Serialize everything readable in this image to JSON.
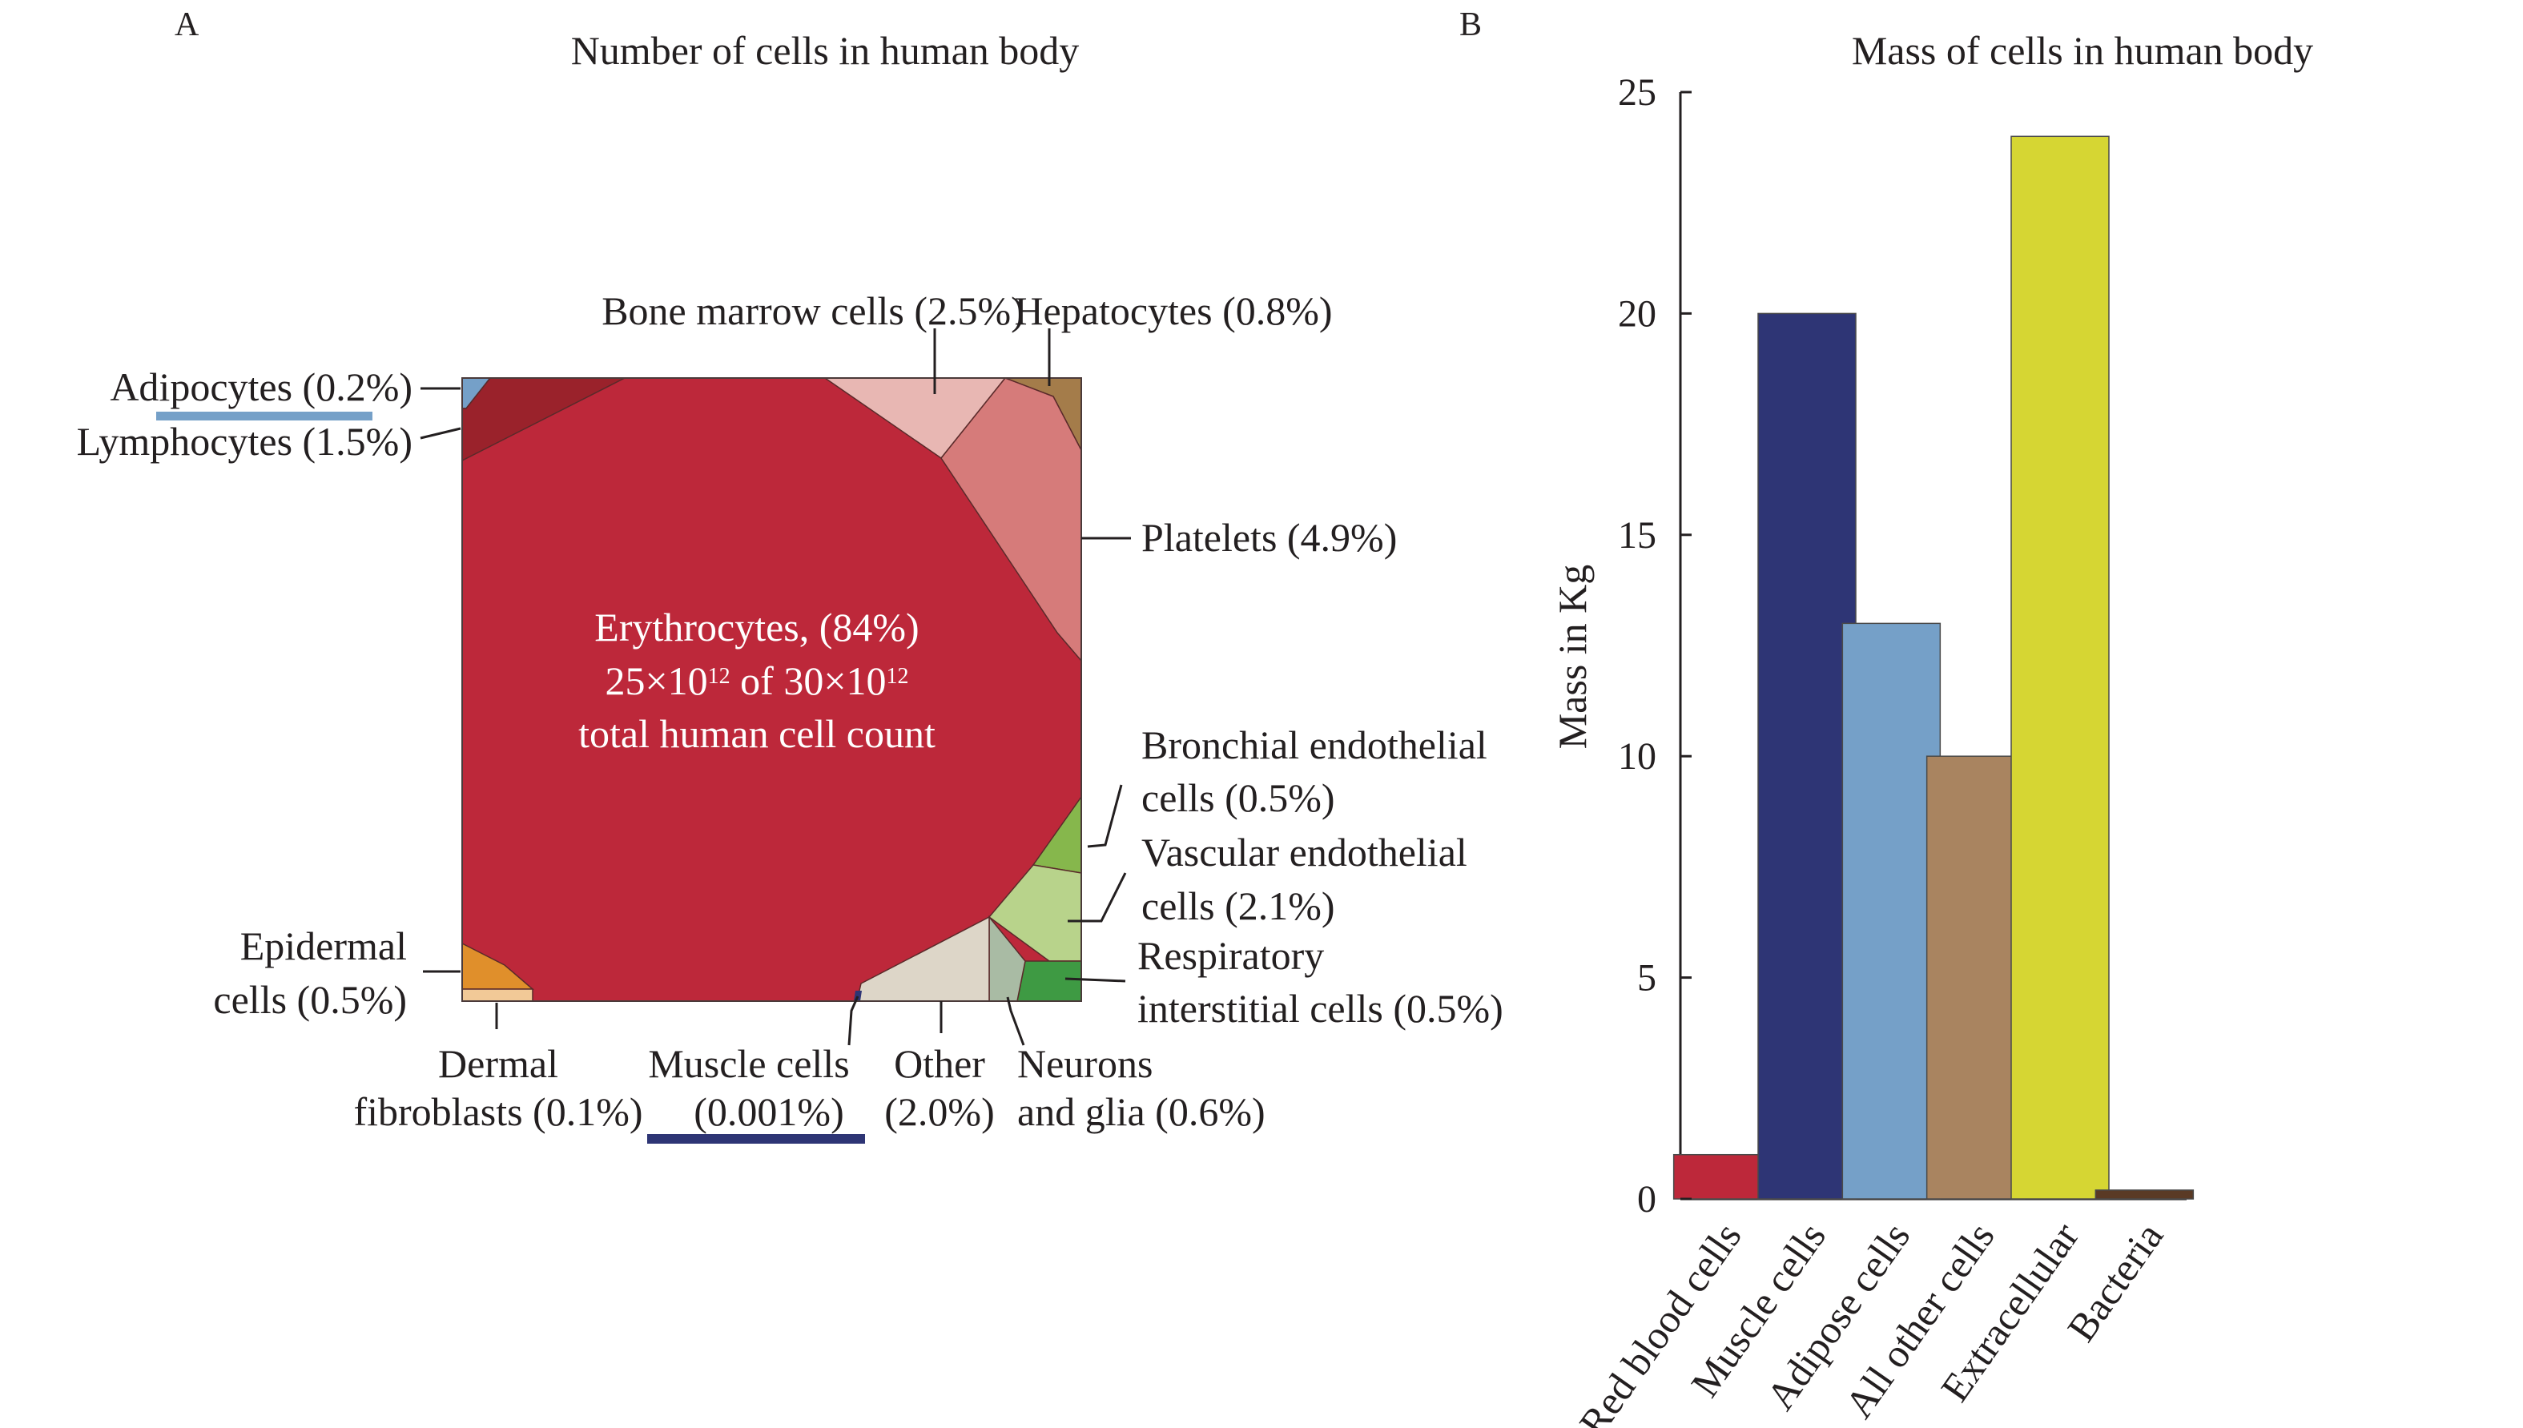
{
  "panel_a": {
    "panel_letter": "A",
    "title": "Number of cells in human body",
    "center": {
      "line1": "Erythrocytes, (84%)",
      "line2_base1": "25×10",
      "line2_exp1": "12",
      "line2_mid": " of 30×10",
      "line2_exp2": "12",
      "line3": "total human cell count"
    },
    "labels": {
      "adipocytes": "Adipocytes (0.2%)",
      "lymphocytes": "Lymphocytes (1.5%)",
      "bone_marrow": "Bone marrow cells (2.5%)",
      "hepatocytes": "Hepatocytes (0.8%)",
      "platelets": "Platelets (4.9%)",
      "bronchial_1": "Bronchial endothelial",
      "bronchial_2": "cells (0.5%)",
      "vascular_1": "Vascular endothelial",
      "vascular_2": "cells (2.1%)",
      "respiratory_1": "Respiratory",
      "respiratory_2": "interstitial cells (0.5%)",
      "epidermal_1": "Epidermal",
      "epidermal_2": "cells (0.5%)",
      "dermal_1": "Dermal",
      "dermal_2": "fibroblasts (0.1%)",
      "muscle_1": "Muscle cells",
      "muscle_2": "(0.001%)",
      "other_1": "Other",
      "other_2": "(2.0%)",
      "neurons_1": "Neurons",
      "neurons_2": "and glia (0.6%)"
    },
    "colors": {
      "erythrocytes": "#bd283a",
      "lymphocytes": "#9a222b",
      "adipocytes": "#75a0c8",
      "bone_marrow": "#e8b7b3",
      "hepatocytes": "#a47c4a",
      "platelets": "#d67b7a",
      "bronchial": "#86b74c",
      "vascular": "#b8d38b",
      "respiratory": "#3e9a43",
      "neurons": "#a9bba4",
      "other": "#ddd6c8",
      "epidermal": "#e08f2b",
      "dermal": "#f2c997",
      "adipocyte_underline": "#75a0c8",
      "muscle_underline": "#2e3575"
    }
  },
  "panel_b": {
    "panel_letter": "B",
    "chart_data": {
      "type": "bar",
      "title": "Mass of cells in human body",
      "ylabel": "Mass in Kg",
      "xlabel": "",
      "ylim": [
        0,
        25
      ],
      "yticks": [
        0,
        5,
        10,
        15,
        20,
        25
      ],
      "grid": false,
      "categories": [
        "Red blood cells",
        "Muscle cells",
        "Adipose cells",
        "All other cells",
        "Extracellular",
        "Bacteria"
      ],
      "values": [
        1,
        20,
        13,
        10,
        24,
        0.2
      ],
      "colors": [
        "#bd283a",
        "#2e3575",
        "#75a0c8",
        "#a98460",
        "#d6d633",
        "#5a3a25"
      ]
    }
  }
}
